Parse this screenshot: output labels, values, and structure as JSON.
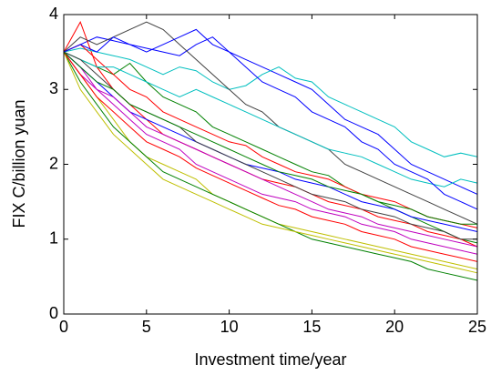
{
  "chart_data": {
    "type": "line",
    "xlabel": "Investment time/year",
    "ylabel": "FIX C/billion yuan",
    "x": [
      0,
      1,
      2,
      3,
      4,
      5,
      6,
      7,
      8,
      9,
      10,
      11,
      12,
      13,
      14,
      15,
      16,
      17,
      18,
      19,
      20,
      21,
      22,
      23,
      24,
      25
    ],
    "xlim": [
      0,
      25
    ],
    "xticks": [
      0,
      5,
      10,
      15,
      20,
      25
    ],
    "ylim": [
      0,
      4
    ],
    "yticks": [
      0,
      1,
      2,
      3,
      4
    ],
    "grid": false,
    "series": [
      {
        "color": "#0000ff",
        "values": [
          3.5,
          3.6,
          3.7,
          3.65,
          3.6,
          3.55,
          3.5,
          3.45,
          3.6,
          3.7,
          3.5,
          3.4,
          3.3,
          3.2,
          3.1,
          3.0,
          2.8,
          2.6,
          2.5,
          2.4,
          2.2,
          2.0,
          1.9,
          1.8,
          1.7,
          1.6
        ]
      },
      {
        "color": "#008000",
        "values": [
          3.5,
          3.4,
          3.3,
          3.2,
          3.35,
          3.1,
          2.9,
          2.8,
          2.7,
          2.5,
          2.4,
          2.3,
          2.2,
          2.1,
          2.0,
          1.9,
          1.85,
          1.7,
          1.6,
          1.5,
          1.4,
          1.3,
          1.2,
          1.1,
          1.0,
          0.95
        ]
      },
      {
        "color": "#ff0000",
        "values": [
          3.5,
          3.9,
          3.3,
          3.0,
          2.8,
          2.6,
          2.4,
          2.3,
          2.2,
          2.1,
          2.0,
          1.9,
          1.8,
          1.75,
          1.7,
          1.6,
          1.5,
          1.45,
          1.4,
          1.3,
          1.25,
          1.2,
          1.1,
          1.05,
          1.0,
          0.9
        ]
      },
      {
        "color": "#00bfbf",
        "values": [
          3.5,
          3.55,
          3.5,
          3.45,
          3.4,
          3.3,
          3.2,
          3.3,
          3.25,
          3.1,
          3.0,
          3.05,
          3.2,
          3.3,
          3.15,
          3.1,
          2.9,
          2.8,
          2.7,
          2.6,
          2.5,
          2.3,
          2.2,
          2.1,
          2.15,
          2.1
        ]
      },
      {
        "color": "#bf00bf",
        "values": [
          3.5,
          3.3,
          3.0,
          2.8,
          2.6,
          2.4,
          2.3,
          2.2,
          2.0,
          1.9,
          1.8,
          1.7,
          1.6,
          1.55,
          1.5,
          1.4,
          1.35,
          1.3,
          1.2,
          1.15,
          1.1,
          1.0,
          0.95,
          0.9,
          0.85,
          0.8
        ]
      },
      {
        "color": "#bfbf00",
        "values": [
          3.5,
          3.2,
          2.9,
          2.6,
          2.3,
          2.1,
          2.0,
          1.9,
          1.8,
          1.6,
          1.5,
          1.4,
          1.3,
          1.2,
          1.15,
          1.1,
          1.05,
          1.0,
          0.95,
          0.9,
          0.85,
          0.8,
          0.75,
          0.7,
          0.65,
          0.6
        ]
      },
      {
        "color": "#404040",
        "values": [
          3.5,
          3.7,
          3.6,
          3.7,
          3.8,
          3.9,
          3.8,
          3.6,
          3.4,
          3.2,
          3.0,
          2.8,
          2.7,
          2.5,
          2.4,
          2.3,
          2.2,
          2.0,
          1.9,
          1.8,
          1.7,
          1.6,
          1.5,
          1.4,
          1.3,
          1.2
        ]
      },
      {
        "color": "#0000ff",
        "values": [
          3.5,
          3.3,
          3.1,
          2.9,
          2.7,
          2.6,
          2.5,
          2.4,
          2.3,
          2.2,
          2.1,
          2.0,
          1.95,
          1.9,
          1.8,
          1.75,
          1.7,
          1.6,
          1.5,
          1.45,
          1.4,
          1.3,
          1.25,
          1.2,
          1.15,
          1.1
        ]
      },
      {
        "color": "#008000",
        "values": [
          3.5,
          3.1,
          2.8,
          2.5,
          2.3,
          2.1,
          1.9,
          1.8,
          1.7,
          1.6,
          1.5,
          1.4,
          1.3,
          1.2,
          1.1,
          1.0,
          0.95,
          0.9,
          0.85,
          0.8,
          0.75,
          0.7,
          0.6,
          0.55,
          0.5,
          0.45
        ]
      },
      {
        "color": "#ff0000",
        "values": [
          3.5,
          3.6,
          3.4,
          3.2,
          3.0,
          2.9,
          2.7,
          2.6,
          2.5,
          2.4,
          2.3,
          2.25,
          2.1,
          2.0,
          1.9,
          1.85,
          1.8,
          1.7,
          1.6,
          1.55,
          1.5,
          1.4,
          1.3,
          1.25,
          1.2,
          1.15
        ]
      },
      {
        "color": "#00bfbf",
        "values": [
          3.5,
          3.4,
          3.3,
          3.3,
          3.2,
          3.1,
          3.0,
          2.9,
          3.0,
          2.9,
          2.8,
          2.7,
          2.6,
          2.5,
          2.4,
          2.3,
          2.2,
          2.15,
          2.1,
          2.0,
          1.9,
          1.8,
          1.75,
          1.7,
          1.8,
          1.75
        ]
      },
      {
        "color": "#bf00bf",
        "values": [
          3.5,
          3.2,
          3.0,
          2.9,
          2.7,
          2.5,
          2.4,
          2.3,
          2.2,
          2.1,
          2.0,
          1.9,
          1.8,
          1.7,
          1.6,
          1.5,
          1.4,
          1.35,
          1.3,
          1.2,
          1.15,
          1.1,
          1.05,
          1.0,
          0.95,
          0.9
        ]
      },
      {
        "color": "#bfbf00",
        "values": [
          3.5,
          3.0,
          2.7,
          2.4,
          2.2,
          2.0,
          1.8,
          1.7,
          1.6,
          1.5,
          1.4,
          1.3,
          1.2,
          1.15,
          1.1,
          1.05,
          1.0,
          0.95,
          0.9,
          0.85,
          0.8,
          0.75,
          0.7,
          0.65,
          0.6,
          0.55
        ]
      },
      {
        "color": "#404040",
        "values": [
          3.5,
          3.4,
          3.2,
          3.0,
          2.8,
          2.7,
          2.6,
          2.5,
          2.3,
          2.2,
          2.1,
          2.0,
          1.9,
          1.8,
          1.7,
          1.6,
          1.55,
          1.5,
          1.4,
          1.35,
          1.3,
          1.2,
          1.15,
          1.1,
          1.0,
          1.0
        ]
      },
      {
        "color": "#0000ff",
        "values": [
          3.5,
          3.6,
          3.5,
          3.7,
          3.6,
          3.5,
          3.6,
          3.7,
          3.8,
          3.6,
          3.5,
          3.3,
          3.1,
          3.0,
          2.9,
          2.7,
          2.6,
          2.5,
          2.3,
          2.2,
          2.0,
          1.9,
          1.8,
          1.6,
          1.5,
          1.4
        ]
      },
      {
        "color": "#ff0000",
        "values": [
          3.5,
          3.2,
          2.9,
          2.7,
          2.5,
          2.3,
          2.2,
          2.1,
          1.95,
          1.85,
          1.75,
          1.65,
          1.55,
          1.45,
          1.4,
          1.3,
          1.25,
          1.2,
          1.1,
          1.05,
          1.0,
          0.9,
          0.85,
          0.8,
          0.75,
          0.7
        ]
      },
      {
        "color": "#008000",
        "values": [
          3.5,
          3.3,
          3.1,
          3.0,
          2.8,
          2.7,
          2.6,
          2.5,
          2.4,
          2.3,
          2.2,
          2.1,
          2.0,
          1.9,
          1.85,
          1.8,
          1.7,
          1.65,
          1.6,
          1.5,
          1.45,
          1.4,
          1.3,
          1.25,
          1.2,
          1.2
        ]
      }
    ]
  }
}
